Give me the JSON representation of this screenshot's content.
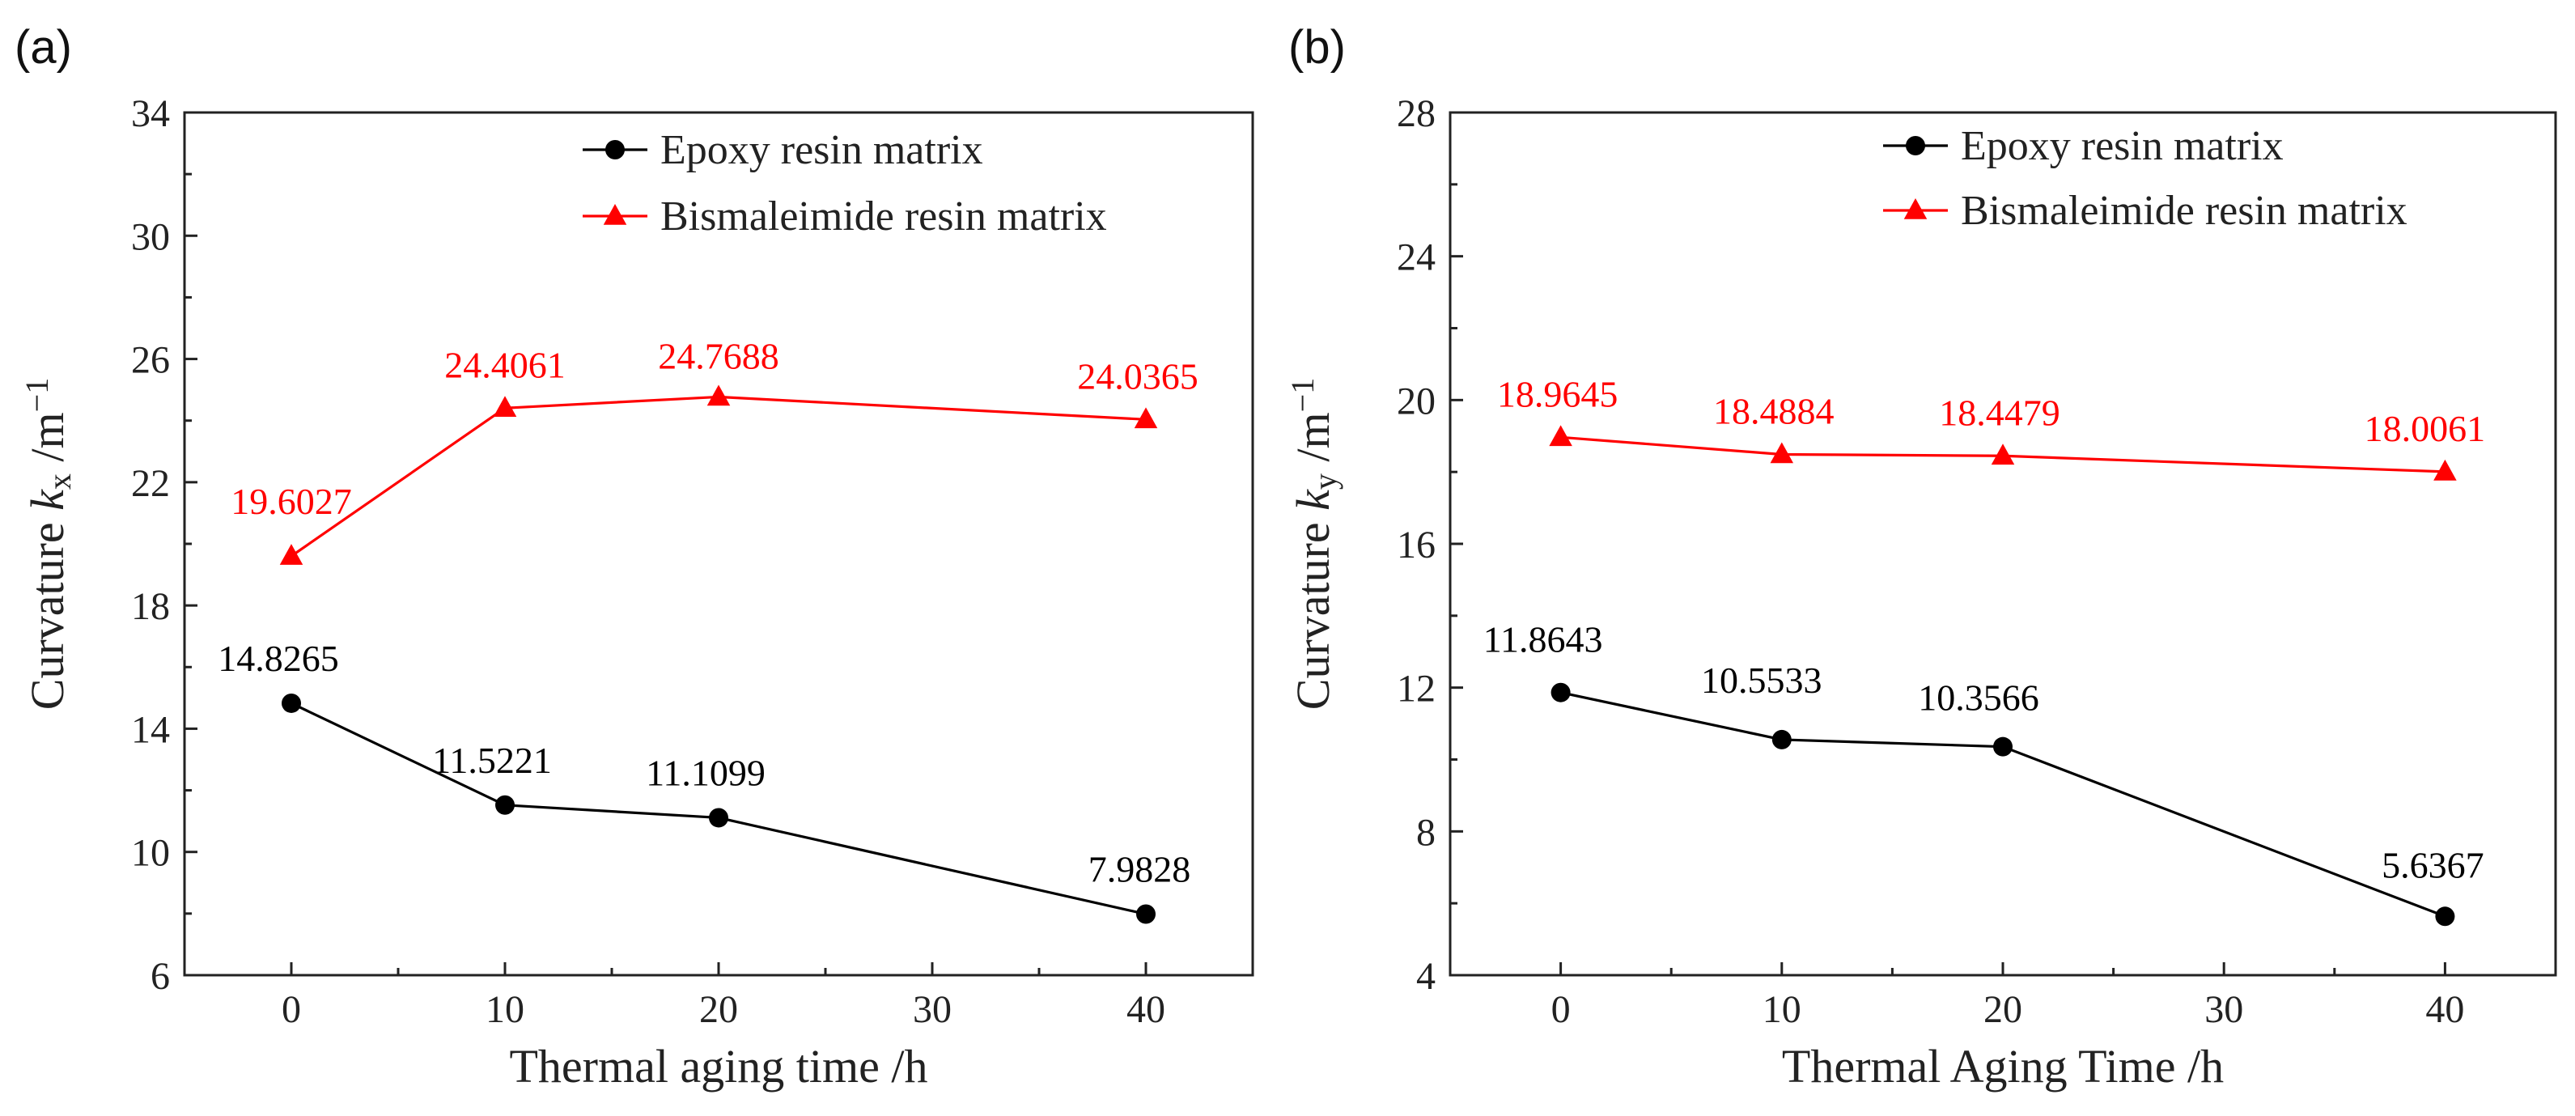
{
  "chart_data": [
    {
      "type": "line",
      "panel_label": "(a)",
      "xlabel": "Thermal aging time /h",
      "ylabel": {
        "prefix": "Curvature ",
        "var": "k",
        "sub": "x",
        "unit": " /m",
        "sup": "−1"
      },
      "xlim": [
        -5,
        45
      ],
      "ylim": [
        6,
        34
      ],
      "xticks": [
        0,
        10,
        20,
        30,
        40
      ],
      "yticks": [
        6,
        10,
        14,
        18,
        22,
        26,
        30,
        34
      ],
      "x": [
        0,
        10,
        20,
        40
      ],
      "legend_position": "top-right",
      "series": [
        {
          "name": "Epoxy resin matrix",
          "marker": "circle",
          "color": "#000000",
          "values": [
            14.8265,
            11.5221,
            11.1099,
            7.9828
          ],
          "labels": [
            "14.8265",
            "11.5221",
            "11.1099",
            "7.9828"
          ]
        },
        {
          "name": "Bismaleimide resin matrix",
          "marker": "triangle",
          "color": "#ff0000",
          "values": [
            19.6027,
            24.4061,
            24.7688,
            24.0365
          ],
          "labels": [
            "19.6027",
            "24.4061",
            "24.7688",
            "24.0365"
          ]
        }
      ]
    },
    {
      "type": "line",
      "panel_label": "(b)",
      "xlabel": "Thermal Aging Time /h",
      "ylabel": {
        "prefix": "Curvature ",
        "var": "k",
        "sub": "y",
        "unit": " /m",
        "sup": "−1"
      },
      "xlim": [
        -5,
        45
      ],
      "ylim": [
        4,
        28
      ],
      "xticks": [
        0,
        10,
        20,
        30,
        40
      ],
      "yticks": [
        4,
        8,
        12,
        16,
        20,
        24,
        28
      ],
      "x": [
        0,
        10,
        20,
        40
      ],
      "legend_position": "top-right",
      "series": [
        {
          "name": "Epoxy resin matrix",
          "marker": "circle",
          "color": "#000000",
          "values": [
            11.8643,
            10.5533,
            10.3566,
            5.6367
          ],
          "labels": [
            "11.8643",
            "10.5533",
            "10.3566",
            "5.6367"
          ]
        },
        {
          "name": "Bismaleimide resin matrix",
          "marker": "triangle",
          "color": "#ff0000",
          "values": [
            18.9645,
            18.4884,
            18.4479,
            18.0061
          ],
          "labels": [
            "18.9645",
            "18.4884",
            "18.4479",
            "18.0061"
          ]
        }
      ]
    }
  ]
}
